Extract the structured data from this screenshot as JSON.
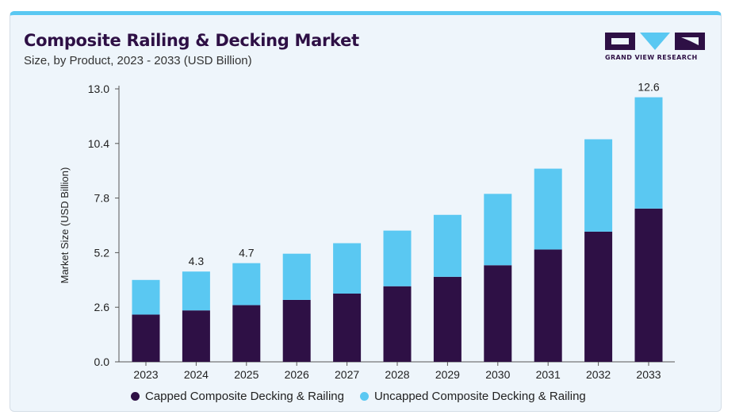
{
  "header": {
    "title": "Composite Railing & Decking Market",
    "subtitle": "Size, by Product, 2023 - 2033 (USD Billion)"
  },
  "logo": {
    "text": "GRAND VIEW RESEARCH",
    "icon": "gvr-logo-icon"
  },
  "colors": {
    "capped": "#2e1045",
    "uncapped": "#5ac8f2",
    "background": "#eef5fb",
    "accent_border": "#5ac8f2"
  },
  "chart_data": {
    "type": "bar",
    "stacked": true,
    "categories": [
      "2023",
      "2024",
      "2025",
      "2026",
      "2027",
      "2028",
      "2029",
      "2030",
      "2031",
      "2032",
      "2033"
    ],
    "series": [
      {
        "name": "Capped Composite Decking & Railing",
        "values": [
          2.25,
          2.45,
          2.7,
          2.95,
          3.25,
          3.6,
          4.05,
          4.6,
          5.35,
          6.2,
          7.3
        ]
      },
      {
        "name": "Uncapped Composite Decking & Railing",
        "values": [
          1.65,
          1.85,
          2.0,
          2.2,
          2.4,
          2.65,
          2.95,
          3.4,
          3.85,
          4.4,
          5.3
        ]
      }
    ],
    "data_labels": [
      {
        "category": "2024",
        "label": "4.3"
      },
      {
        "category": "2025",
        "label": "4.7"
      },
      {
        "category": "2033",
        "label": "12.6"
      }
    ],
    "yticks": [
      "0.0",
      "2.6",
      "5.2",
      "7.8",
      "10.4",
      "13.0"
    ],
    "ylim": [
      0,
      13.0
    ],
    "xlabel": "",
    "ylabel": "Market Size (USD Billion)",
    "grid": false,
    "legend_position": "bottom"
  }
}
